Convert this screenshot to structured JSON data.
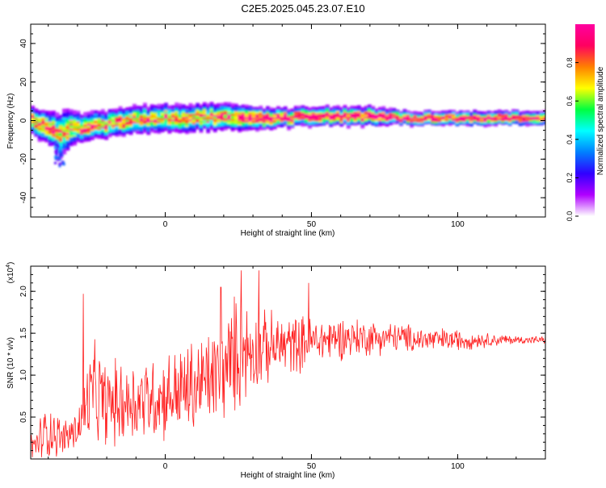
{
  "title": "C2E5.2025.045.23.07.E10",
  "chart_data": [
    {
      "type": "heatmap",
      "xlabel": "Height of straight line (km)",
      "ylabel": "Frequency (Hz)",
      "xlim": [
        -46,
        130
      ],
      "ylim": [
        -50,
        50
      ],
      "xticks": [
        "0",
        "50",
        "100"
      ],
      "xtick_values": [
        0,
        50,
        100
      ],
      "yticks": [
        "-40",
        "-20",
        "0",
        "20",
        "40"
      ],
      "ytick_values": [
        -40,
        -20,
        0,
        20,
        40
      ],
      "colorbar": {
        "label": "Normalized spectral amplitude",
        "range": [
          0,
          1
        ],
        "ticks": [
          "0.0",
          "0.2",
          "0.4",
          "0.6",
          "0.8"
        ],
        "tick_values": [
          0.0,
          0.2,
          0.4,
          0.6,
          0.8
        ],
        "colors": [
          "#ffffff",
          "#b000ff",
          "#3000ff",
          "#0080ff",
          "#00ffff",
          "#00ff40",
          "#ffff00",
          "#ff8000",
          "#ff0060",
          "#ff00a0"
        ]
      },
      "ridge": {
        "x": [
          -46,
          -42,
          -38,
          -36,
          -34,
          -30,
          -20,
          -10,
          0,
          10,
          20,
          30,
          40,
          50,
          60,
          70,
          80,
          90,
          100,
          110,
          120,
          130
        ],
        "y": [
          0,
          -3,
          -6,
          -8,
          -5,
          -4,
          -2,
          0,
          1,
          1,
          2,
          1,
          1,
          2,
          2,
          2,
          1,
          1,
          1,
          1,
          1,
          1
        ],
        "spread": [
          6,
          7,
          8,
          10,
          9,
          6,
          6,
          6,
          6,
          6,
          6,
          5,
          4,
          4,
          4,
          4,
          3,
          3,
          3,
          3,
          3,
          3
        ]
      }
    },
    {
      "type": "line",
      "xlabel": "Height of straight line (km)",
      "ylabel": "SNR (10 * v/v)",
      "yscale_note": "(x10",
      "yscale_exp": "4",
      "yscale_close": ")",
      "xlim": [
        -46,
        130
      ],
      "ylim": [
        0,
        2.3
      ],
      "xticks": [
        "0",
        "50",
        "100"
      ],
      "xtick_values": [
        0,
        50,
        100
      ],
      "yticks": [
        "0.5",
        "1.0",
        "1.5",
        "2.0"
      ],
      "ytick_values": [
        0.5,
        1.0,
        1.5,
        2.0
      ],
      "color": "#ff2020",
      "envelope": {
        "x": [
          -46,
          -40,
          -35,
          -30,
          -25,
          -20,
          -10,
          0,
          10,
          20,
          25,
          30,
          40,
          50,
          60,
          70,
          80,
          90,
          100,
          110,
          120,
          130
        ],
        "mean": [
          0.1,
          0.35,
          0.25,
          0.35,
          0.8,
          0.65,
          0.7,
          0.75,
          0.85,
          1.05,
          1.3,
          1.3,
          1.35,
          1.4,
          1.45,
          1.45,
          1.45,
          1.42,
          1.42,
          1.42,
          1.42,
          1.42
        ],
        "amp": [
          0.25,
          0.4,
          0.25,
          0.3,
          0.7,
          0.6,
          0.6,
          0.6,
          0.7,
          0.7,
          0.85,
          0.55,
          0.45,
          0.35,
          0.3,
          0.25,
          0.2,
          0.18,
          0.15,
          0.1,
          0.06,
          0.05
        ]
      },
      "spikes": [
        {
          "x": -28,
          "y": 1.97
        },
        {
          "x": 19,
          "y": 2.05
        },
        {
          "x": 26,
          "y": 2.25
        },
        {
          "x": 32,
          "y": 2.25
        },
        {
          "x": 49,
          "y": 2.1
        }
      ]
    }
  ]
}
